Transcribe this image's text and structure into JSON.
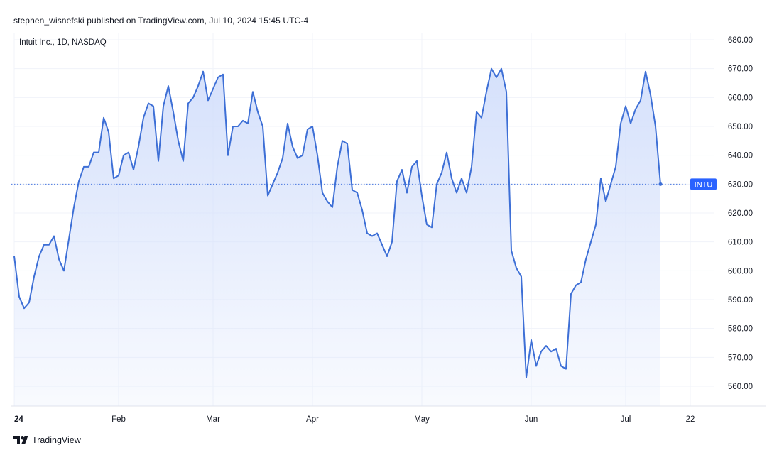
{
  "publish_line": "stephen_wisnefski published on TradingView.com, Jul 10, 2024 15:45 UTC-4",
  "brand": "TradingView",
  "colors": {
    "line": "#3d6fd6",
    "fill_top": "#d7e2fb",
    "grid": "#f0f3fa",
    "dotted": "#4a78e0",
    "tag_bg": "#2962ff",
    "axis_text": "#131722"
  },
  "chart_data": {
    "type": "area",
    "title": "Intuit Inc., 1D, NASDAQ",
    "ylabel": "",
    "xlabel": "",
    "ylim": [
      555,
      685
    ],
    "y_ticks": [
      "680.00",
      "670.00",
      "660.00",
      "650.00",
      "640.00",
      "630.00",
      "620.00",
      "610.00",
      "600.00",
      "590.00",
      "580.00",
      "570.00",
      "560.00"
    ],
    "y_tick_values": [
      680,
      670,
      660,
      650,
      640,
      630,
      620,
      610,
      600,
      590,
      580,
      570,
      560
    ],
    "x_ticks": [
      {
        "label": "24",
        "day": 0
      },
      {
        "label": "Feb",
        "day": 21
      },
      {
        "label": "Mar",
        "day": 40
      },
      {
        "label": "Apr",
        "day": 60
      },
      {
        "label": "May",
        "day": 82
      },
      {
        "label": "Jun",
        "day": 104
      },
      {
        "label": "Jul",
        "day": 123
      },
      {
        "label": "22",
        "day": 136
      }
    ],
    "last_value": 630,
    "last_label": "INTU",
    "series": [
      {
        "name": "INTU",
        "points": [
          [
            0,
            605
          ],
          [
            1,
            591
          ],
          [
            2,
            587
          ],
          [
            3,
            589
          ],
          [
            4,
            598
          ],
          [
            5,
            605
          ],
          [
            6,
            609
          ],
          [
            7,
            609
          ],
          [
            8,
            612
          ],
          [
            9,
            604
          ],
          [
            10,
            600
          ],
          [
            11,
            611
          ],
          [
            12,
            622
          ],
          [
            13,
            631
          ],
          [
            14,
            636
          ],
          [
            15,
            636
          ],
          [
            16,
            641
          ],
          [
            17,
            641
          ],
          [
            18,
            653
          ],
          [
            19,
            648
          ],
          [
            20,
            632
          ],
          [
            21,
            633
          ],
          [
            22,
            640
          ],
          [
            23,
            641
          ],
          [
            24,
            635
          ],
          [
            25,
            643
          ],
          [
            26,
            653
          ],
          [
            27,
            658
          ],
          [
            28,
            657
          ],
          [
            29,
            638
          ],
          [
            30,
            657
          ],
          [
            31,
            664
          ],
          [
            32,
            655
          ],
          [
            33,
            645
          ],
          [
            34,
            638
          ],
          [
            35,
            658
          ],
          [
            36,
            660
          ],
          [
            37,
            664
          ],
          [
            38,
            669
          ],
          [
            39,
            659
          ],
          [
            40,
            663
          ],
          [
            41,
            667
          ],
          [
            42,
            668
          ],
          [
            43,
            640
          ],
          [
            44,
            650
          ],
          [
            45,
            650
          ],
          [
            46,
            652
          ],
          [
            47,
            651
          ],
          [
            48,
            662
          ],
          [
            49,
            655
          ],
          [
            50,
            650
          ],
          [
            51,
            626
          ],
          [
            52,
            630
          ],
          [
            53,
            634
          ],
          [
            54,
            639
          ],
          [
            55,
            651
          ],
          [
            56,
            643
          ],
          [
            57,
            639
          ],
          [
            58,
            640
          ],
          [
            59,
            649
          ],
          [
            60,
            650
          ],
          [
            61,
            640
          ],
          [
            62,
            627
          ],
          [
            63,
            624
          ],
          [
            64,
            622
          ],
          [
            65,
            636
          ],
          [
            66,
            645
          ],
          [
            67,
            644
          ],
          [
            68,
            628
          ],
          [
            69,
            627
          ],
          [
            70,
            621
          ],
          [
            71,
            613
          ],
          [
            72,
            612
          ],
          [
            73,
            613
          ],
          [
            74,
            609
          ],
          [
            75,
            605
          ],
          [
            76,
            610
          ],
          [
            77,
            631
          ],
          [
            78,
            635
          ],
          [
            79,
            627
          ],
          [
            80,
            636
          ],
          [
            81,
            638
          ],
          [
            82,
            626
          ],
          [
            83,
            616
          ],
          [
            84,
            615
          ],
          [
            85,
            630
          ],
          [
            86,
            634
          ],
          [
            87,
            641
          ],
          [
            88,
            632
          ],
          [
            89,
            627
          ],
          [
            90,
            632
          ],
          [
            91,
            627
          ],
          [
            92,
            636
          ],
          [
            93,
            655
          ],
          [
            94,
            653
          ],
          [
            95,
            662
          ],
          [
            96,
            670
          ],
          [
            97,
            667
          ],
          [
            98,
            670
          ],
          [
            99,
            662
          ],
          [
            100,
            607
          ],
          [
            101,
            601
          ],
          [
            102,
            598
          ],
          [
            103,
            563
          ],
          [
            104,
            576
          ],
          [
            105,
            567
          ],
          [
            106,
            572
          ],
          [
            107,
            574
          ],
          [
            108,
            572
          ],
          [
            109,
            573
          ],
          [
            110,
            567
          ],
          [
            111,
            566
          ],
          [
            112,
            592
          ],
          [
            113,
            595
          ],
          [
            114,
            596
          ],
          [
            115,
            604
          ],
          [
            116,
            610
          ],
          [
            117,
            616
          ],
          [
            118,
            632
          ],
          [
            119,
            624
          ],
          [
            120,
            630
          ],
          [
            121,
            636
          ],
          [
            122,
            651
          ],
          [
            123,
            657
          ],
          [
            124,
            651
          ],
          [
            125,
            656
          ],
          [
            126,
            659
          ],
          [
            127,
            669
          ],
          [
            128,
            661
          ],
          [
            129,
            650
          ],
          [
            130,
            630
          ]
        ]
      }
    ]
  }
}
